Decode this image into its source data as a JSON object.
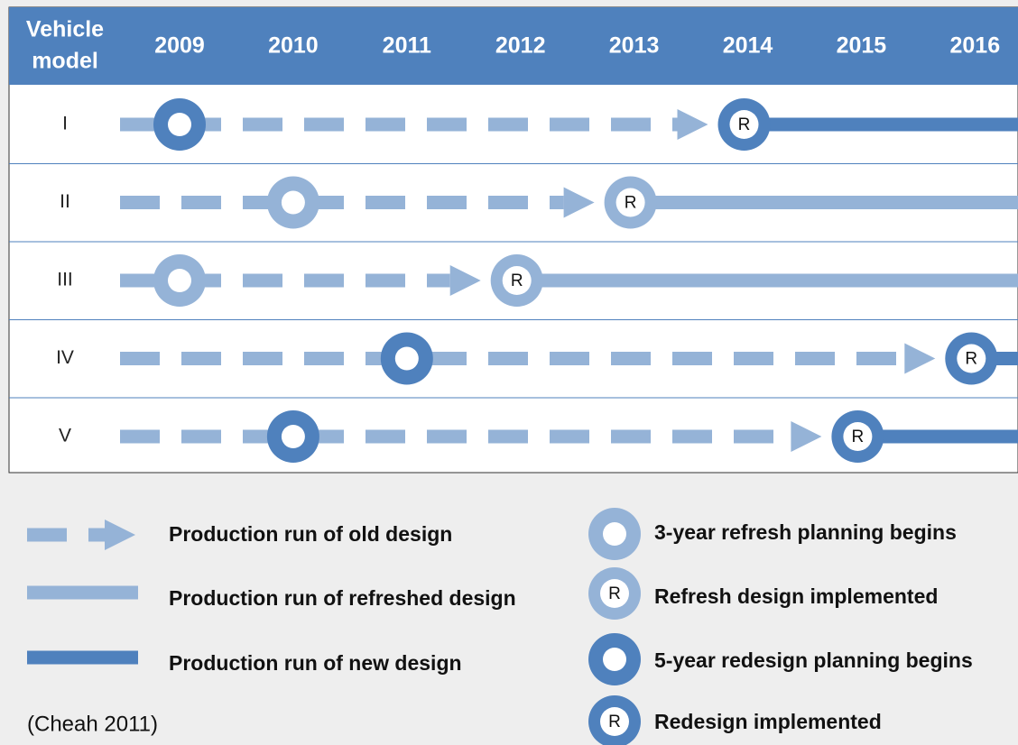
{
  "header": {
    "first_column": [
      "Vehicle",
      "model"
    ],
    "years": [
      "2009",
      "2010",
      "2011",
      "2012",
      "2013",
      "2014",
      "2015",
      "2016"
    ]
  },
  "rows": [
    "I",
    "II",
    "III",
    "IV",
    "V"
  ],
  "marker_letter": "R",
  "legend": {
    "lines": [
      "Production run of old design",
      "Production run of refreshed design",
      "Production run of new design"
    ],
    "markers": [
      "3-year refresh planning begins",
      "Refresh design implemented",
      "5-year redesign planning begins",
      "Redesign implemented"
    ]
  },
  "citation": "(Cheah 2011)"
}
